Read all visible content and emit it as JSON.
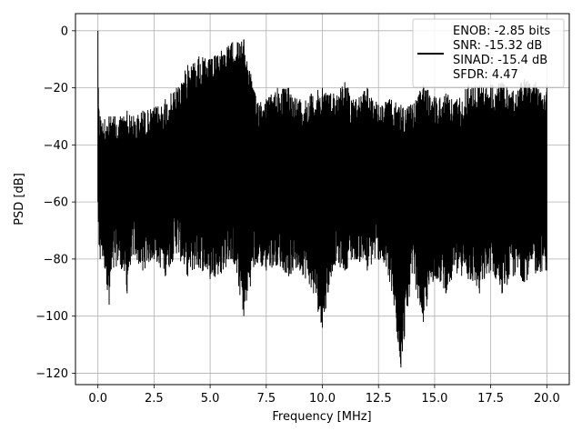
{
  "chart_data": {
    "type": "line",
    "xlabel": "Frequency [MHz]",
    "ylabel": "PSD [dB]",
    "xlim": [
      -1.0,
      21.0
    ],
    "ylim": [
      -124.0,
      6.0
    ],
    "x_ticks": [
      0.0,
      2.5,
      5.0,
      7.5,
      10.0,
      12.5,
      15.0,
      17.5,
      20.0
    ],
    "x_tick_labels": [
      "0.0",
      "2.5",
      "5.0",
      "7.5",
      "10.0",
      "12.5",
      "15.0",
      "17.5",
      "20.0"
    ],
    "y_ticks": [
      0,
      -20,
      -40,
      -60,
      -80,
      -100,
      -120
    ],
    "y_tick_labels": [
      "0",
      "−20",
      "−40",
      "−60",
      "−80",
      "−100",
      "−120"
    ],
    "grid": true,
    "legend_position": "top-right",
    "legend": {
      "line_color": "#000000",
      "lines": [
        "ENOB: -2.85 bits",
        "SNR: -15.32 dB",
        "SINAD: -15.4 dB",
        "SFDR: 4.47"
      ]
    },
    "series": [
      {
        "color": "#000000",
        "x": [
          0.0,
          0.02,
          0.05,
          0.1,
          0.3,
          0.5,
          0.7,
          1.0,
          1.3,
          1.5,
          2.0,
          2.5,
          3.0,
          3.5,
          4.0,
          4.5,
          5.0,
          5.5,
          6.0,
          6.5,
          7.0,
          7.5,
          8.0,
          8.5,
          9.0,
          9.5,
          10.0,
          10.5,
          11.0,
          11.5,
          12.0,
          12.5,
          13.0,
          13.5,
          14.0,
          14.5,
          15.0,
          15.5,
          16.0,
          16.5,
          17.0,
          17.5,
          18.0,
          18.5,
          19.0,
          19.5,
          20.0
        ],
        "upper": [
          0,
          -20,
          -28,
          -30,
          -31,
          -30,
          -30,
          -30,
          -28,
          -30,
          -28,
          -27,
          -24,
          -20,
          -12,
          -9,
          -10,
          -7,
          -4,
          -3,
          -22,
          -24,
          -20,
          -20,
          -24,
          -22,
          -20,
          -22,
          -18,
          -24,
          -20,
          -26,
          -24,
          -26,
          -26,
          -19,
          -23,
          -22,
          -24,
          -19,
          -19,
          -19,
          -18,
          -21,
          -17,
          -18,
          -19
        ],
        "lower": [
          -60,
          -67,
          -75,
          -80,
          -83,
          -96,
          -83,
          -82,
          -92,
          -79,
          -84,
          -80,
          -86,
          -78,
          -86,
          -83,
          -87,
          -85,
          -80,
          -100,
          -82,
          -84,
          -82,
          -86,
          -84,
          -90,
          -104,
          -82,
          -84,
          -80,
          -84,
          -80,
          -88,
          -118,
          -85,
          -102,
          -86,
          -92,
          -85,
          -87,
          -92,
          -84,
          -92,
          -86,
          -88,
          -85,
          -84
        ]
      }
    ]
  }
}
